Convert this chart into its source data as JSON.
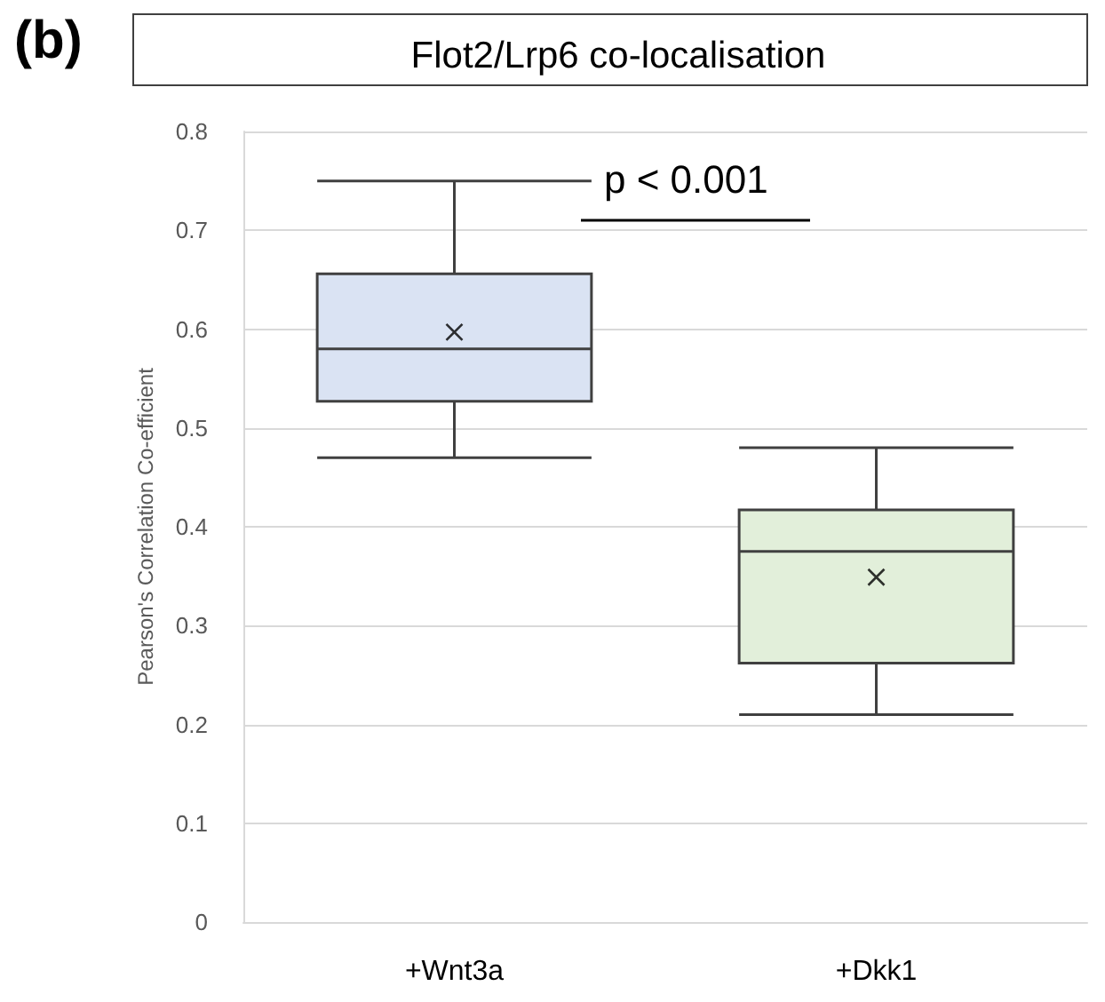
{
  "chart_data": {
    "type": "box",
    "title": "Flot2/Lrp6 co-localisation",
    "ylabel": "Pearson's Correlation Co-efficient",
    "categories": [
      "+Wnt3a",
      "+Dkk1"
    ],
    "boxes": [
      {
        "low": 0.47,
        "q1": 0.527,
        "median": 0.58,
        "q3": 0.656,
        "high": 0.75,
        "mean": 0.597
      },
      {
        "low": 0.21,
        "q1": 0.262,
        "median": 0.375,
        "q3": 0.417,
        "high": 0.48,
        "mean": 0.349
      }
    ],
    "colors": [
      "#dae3f3",
      "#e2efda"
    ],
    "ylim": [
      0,
      0.8
    ],
    "yticks": [
      0,
      0.1,
      0.2,
      0.3,
      0.4,
      0.5,
      0.6,
      0.7,
      0.8
    ],
    "grid": "y",
    "annotations": [
      "(b)",
      "p < 0.001"
    ]
  }
}
